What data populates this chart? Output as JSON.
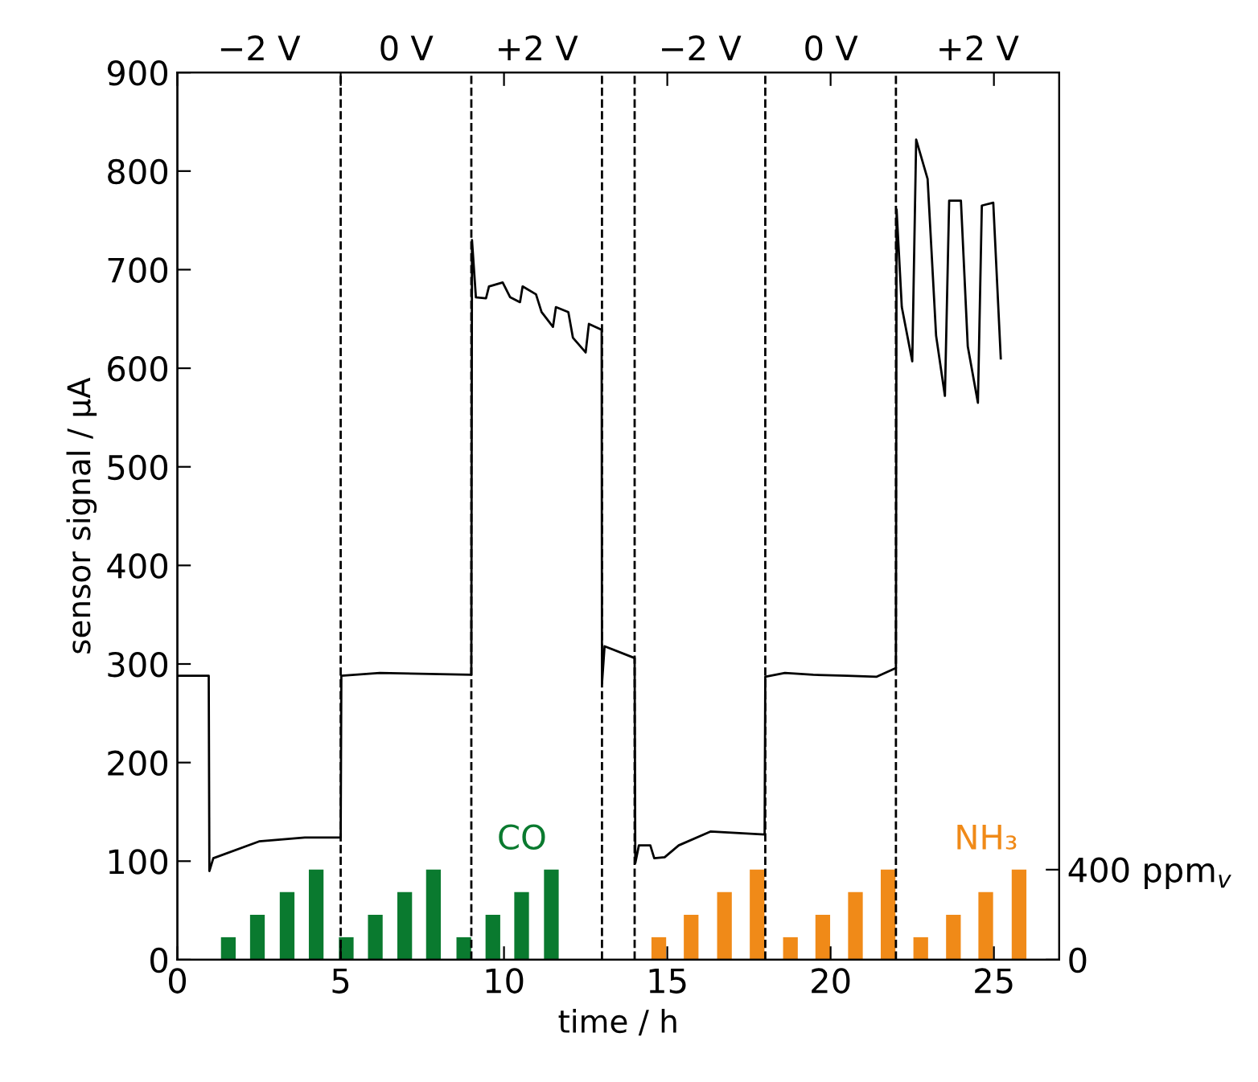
{
  "chart_data": {
    "type": "line",
    "xlabel": "time / h",
    "ylabel": "sensor signal / µA",
    "xlim": [
      0,
      27
    ],
    "xticks": [
      0,
      5,
      10,
      15,
      20,
      25
    ],
    "ylim": [
      0,
      900
    ],
    "yticks": [
      0,
      100,
      200,
      300,
      400,
      500,
      600,
      700,
      800,
      900
    ],
    "y2lim": [
      0,
      3940
    ],
    "y2ticks": [
      0,
      {
        "value": 400,
        "label": "400 ppm$_{v}$"
      }
    ],
    "grid": false,
    "legend": false,
    "marker": "none",
    "line_style": "solid",
    "series": [
      {
        "color": "#000000",
        "x": [
          0,
          0.96,
          0.98,
          1.1,
          2.5,
          3.9,
          5.0,
          5.02,
          6.2,
          9.0,
          9.02,
          9.14,
          9.45,
          9.54,
          9.96,
          10.19,
          10.49,
          10.57,
          10.98,
          11.15,
          11.5,
          11.59,
          11.97,
          12.11,
          12.5,
          12.6,
          12.99,
          13.0,
          13.08,
          14.0,
          14.02,
          14.13,
          14.48,
          14.6,
          14.92,
          15.35,
          16.32,
          17.98,
          18.0,
          18.6,
          19.47,
          20.5,
          21.4,
          22.0,
          22.02,
          22.18,
          22.5,
          22.62,
          22.97,
          23.23,
          23.5,
          23.63,
          23.99,
          24.2,
          24.51,
          24.63,
          24.98,
          25.21
        ],
        "values": [
          288,
          288,
          90,
          103,
          120,
          124,
          124,
          288,
          291,
          289,
          730,
          672,
          671,
          683,
          687,
          672,
          667,
          683,
          675,
          657,
          642,
          662,
          657,
          631,
          616,
          645,
          639,
          280,
          318,
          306,
          98,
          116,
          116,
          103,
          104,
          116,
          130,
          127,
          287,
          291,
          289,
          288,
          287,
          296,
          761,
          662,
          607,
          832,
          792,
          633,
          572,
          770,
          770,
          622,
          565,
          765,
          768,
          610
        ]
      },
      {
        "type": "bar",
        "axis": "y2",
        "name": "CO",
        "color": "#0a7a2f",
        "x": [
          1.56,
          2.45,
          3.36,
          4.25,
          5.17,
          6.06,
          6.96,
          7.84,
          8.77,
          9.66,
          10.54,
          11.45
        ],
        "values": [
          100,
          200,
          300,
          400,
          100,
          200,
          300,
          400,
          100,
          200,
          300,
          400
        ]
      },
      {
        "type": "bar",
        "axis": "y2",
        "name": "NH₃",
        "color": "#f08a18",
        "x": [
          14.74,
          15.73,
          16.75,
          17.75,
          18.77,
          19.76,
          20.76,
          21.76,
          22.76,
          23.76,
          24.75,
          25.77
        ],
        "values": [
          100,
          200,
          300,
          400,
          100,
          200,
          300,
          400,
          100,
          200,
          300,
          400
        ]
      }
    ],
    "ref_lines": [
      {
        "axis": "x",
        "value": 5,
        "line_style": "dashed",
        "color": "#000000"
      },
      {
        "axis": "x",
        "value": 9,
        "line_style": "dashed",
        "color": "#000000"
      },
      {
        "axis": "x",
        "value": 13,
        "line_style": "dashed",
        "color": "#000000"
      },
      {
        "axis": "x",
        "value": 14,
        "line_style": "dashed",
        "color": "#000000"
      },
      {
        "axis": "x",
        "value": 18,
        "line_style": "dashed",
        "color": "#000000"
      },
      {
        "axis": "x",
        "value": 22,
        "line_style": "dashed",
        "color": "#000000"
      }
    ],
    "annotations": [
      "−2 V",
      "0 V",
      "+2 V",
      "−2 V",
      "0 V",
      "+2 V"
    ]
  }
}
